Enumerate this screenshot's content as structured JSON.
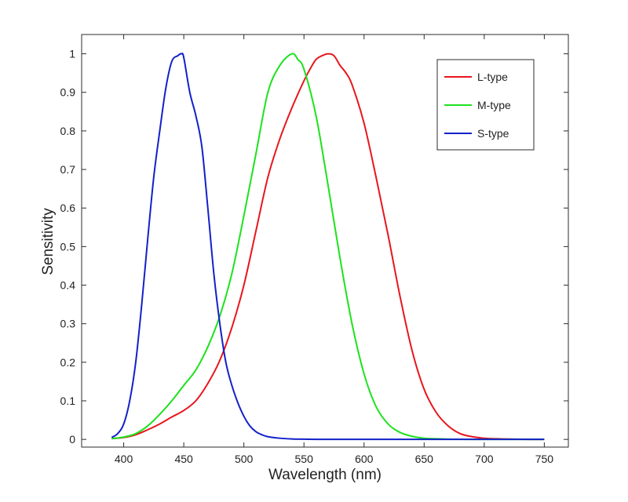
{
  "chart_data": {
    "type": "line",
    "title": "",
    "xlabel": "Wavelength (nm)",
    "ylabel": "Sensitivity",
    "xlim": [
      365,
      770
    ],
    "ylim": [
      -0.02,
      1.05
    ],
    "x_ticks": [
      400,
      450,
      500,
      550,
      600,
      650,
      700,
      750
    ],
    "y_ticks": [
      0,
      0.1,
      0.2,
      0.3,
      0.4,
      0.5,
      0.6,
      0.7,
      0.8,
      0.9,
      1
    ],
    "x_tick_labels": [
      "400",
      "450",
      "500",
      "550",
      "600",
      "650",
      "700",
      "750"
    ],
    "y_tick_labels": [
      "0",
      "0.1",
      "0.2",
      "0.3",
      "0.4",
      "0.5",
      "0.6",
      "0.7",
      "0.8",
      "0.9",
      "1"
    ],
    "grid": false,
    "legend_position": "top-right",
    "series": [
      {
        "name": "L-type",
        "color": "#e8161d",
        "x": [
          390,
          400,
          410,
          420,
          430,
          440,
          450,
          460,
          470,
          480,
          490,
          500,
          510,
          520,
          530,
          540,
          550,
          555,
          560,
          565,
          570,
          575,
          580,
          585,
          590,
          600,
          610,
          620,
          630,
          640,
          650,
          660,
          670,
          680,
          690,
          700,
          710,
          720,
          730,
          740,
          750
        ],
        "values": [
          0.002,
          0.005,
          0.012,
          0.025,
          0.04,
          0.058,
          0.075,
          0.1,
          0.145,
          0.205,
          0.29,
          0.4,
          0.54,
          0.68,
          0.78,
          0.86,
          0.93,
          0.96,
          0.985,
          0.995,
          1.0,
          0.995,
          0.97,
          0.95,
          0.92,
          0.82,
          0.68,
          0.53,
          0.37,
          0.23,
          0.13,
          0.07,
          0.035,
          0.015,
          0.007,
          0.003,
          0.0015,
          0.0008,
          0.0004,
          0.0002,
          0.0001
        ]
      },
      {
        "name": "M-type",
        "color": "#1de21d",
        "x": [
          390,
          400,
          410,
          420,
          430,
          440,
          450,
          460,
          470,
          480,
          490,
          500,
          510,
          520,
          530,
          540,
          545,
          550,
          560,
          570,
          580,
          590,
          600,
          610,
          620,
          630,
          640,
          650,
          660,
          670,
          680,
          690,
          700,
          710,
          720,
          730,
          740,
          750
        ],
        "values": [
          0.002,
          0.006,
          0.015,
          0.035,
          0.065,
          0.1,
          0.14,
          0.18,
          0.24,
          0.32,
          0.43,
          0.58,
          0.74,
          0.9,
          0.97,
          1.0,
          0.985,
          0.96,
          0.84,
          0.66,
          0.47,
          0.3,
          0.17,
          0.085,
          0.04,
          0.018,
          0.008,
          0.003,
          0.0015,
          0.0006,
          0.0003,
          0.0001,
          0.0001,
          0,
          0,
          0,
          0,
          0
        ]
      },
      {
        "name": "S-type",
        "color": "#1221c9",
        "x": [
          390,
          395,
          400,
          405,
          410,
          415,
          420,
          425,
          430,
          435,
          440,
          445,
          448,
          450,
          455,
          460,
          465,
          470,
          475,
          480,
          485,
          490,
          495,
          500,
          505,
          510,
          515,
          520,
          530,
          540,
          550,
          560,
          580,
          600,
          650,
          700,
          750
        ],
        "values": [
          0.005,
          0.015,
          0.04,
          0.1,
          0.2,
          0.35,
          0.52,
          0.68,
          0.8,
          0.91,
          0.98,
          0.995,
          1.0,
          0.99,
          0.9,
          0.84,
          0.76,
          0.6,
          0.43,
          0.3,
          0.2,
          0.14,
          0.095,
          0.06,
          0.035,
          0.02,
          0.012,
          0.007,
          0.003,
          0.001,
          0.0005,
          0.0002,
          0,
          0,
          0,
          0,
          0
        ]
      }
    ]
  }
}
